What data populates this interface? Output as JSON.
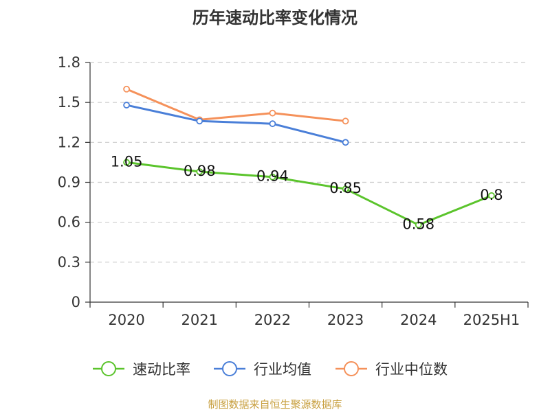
{
  "chart_data": {
    "type": "line",
    "title": "历年速动比率变化情况",
    "categories": [
      "2020",
      "2021",
      "2022",
      "2023",
      "2024",
      "2025H1"
    ],
    "ylim": [
      0,
      1.8
    ],
    "yticks": [
      "0",
      "0.3",
      "0.6",
      "0.9",
      "1.2",
      "1.5",
      "1.8"
    ],
    "grid": true,
    "legend_position": "bottom",
    "series": [
      {
        "name": "速动比率",
        "color": "#5bc42c",
        "values": [
          1.05,
          0.98,
          0.94,
          0.85,
          0.58,
          0.8
        ],
        "labels": [
          "1.05",
          "0.98",
          "0.94",
          "0.85",
          "0.58",
          "0.8"
        ]
      },
      {
        "name": "行业均值",
        "color": "#4a7fd8",
        "values": [
          1.48,
          1.36,
          1.34,
          1.2,
          null,
          null
        ]
      },
      {
        "name": "行业中位数",
        "color": "#f5915a",
        "values": [
          1.6,
          1.37,
          1.42,
          1.36,
          null,
          null
        ]
      }
    ]
  },
  "source_text": "制图数据来自恒生聚源数据库"
}
